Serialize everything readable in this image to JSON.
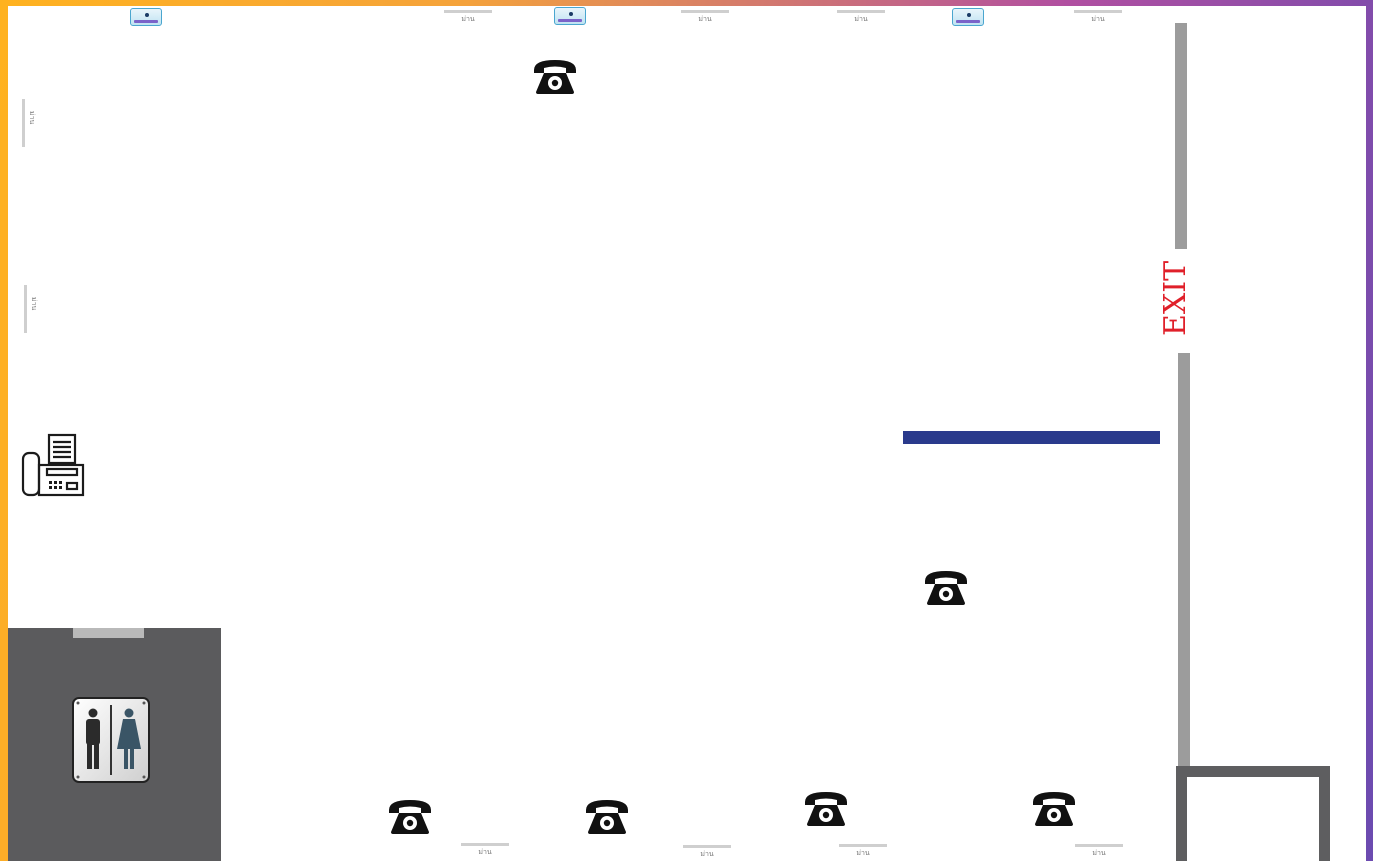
{
  "curtain_label": "ม่าน",
  "exit_label": "EXIT",
  "colors": {
    "exit_red": "#e0202a",
    "blue_bar": "#2a3a8c",
    "restroom_bg": "#5b5b5d",
    "wall_gray": "#9c9c9c",
    "frame_dark": "#5e5e60"
  },
  "icons": [
    "air-conditioner-icon",
    "telephone-icon",
    "fax-machine-icon",
    "restroom-sign-icon"
  ]
}
